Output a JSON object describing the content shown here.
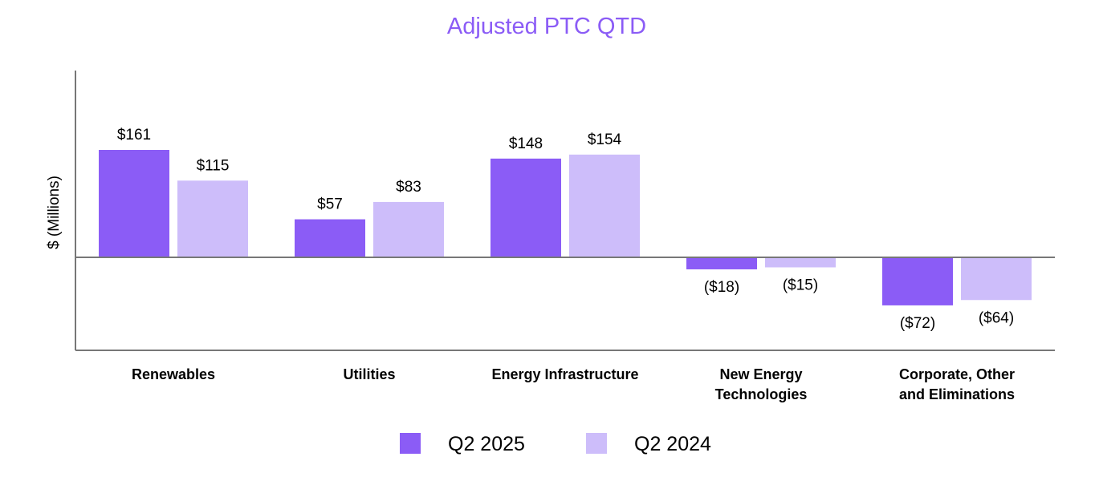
{
  "chart_data": {
    "type": "bar",
    "title": "Adjusted PTC QTD",
    "xlabel": "",
    "ylabel": "$ (Millions)",
    "categories": [
      [
        "Renewables"
      ],
      [
        "Utilities"
      ],
      [
        "Energy Infrastructure"
      ],
      [
        "New Energy",
        "Technologies"
      ],
      [
        "Corporate, Other",
        "and Eliminations"
      ]
    ],
    "series": [
      {
        "name": "Q2 2025",
        "values": [
          161,
          57,
          148,
          -18,
          -72
        ],
        "labels": [
          "$161",
          "$57",
          "$148",
          "($18)",
          "($72)"
        ]
      },
      {
        "name": "Q2 2024",
        "values": [
          115,
          83,
          154,
          -15,
          -64
        ],
        "labels": [
          "$115",
          "$83",
          "$154",
          "($15)",
          "($64)"
        ]
      }
    ],
    "ylim": [
      -138,
      280
    ],
    "grid": false,
    "legend_position": "bottom-center"
  },
  "colors": {
    "title": "#8B5CF6",
    "series": [
      "#8B5CF6",
      "#CDBDFA"
    ],
    "axis": "#777777",
    "text": "#000000"
  }
}
